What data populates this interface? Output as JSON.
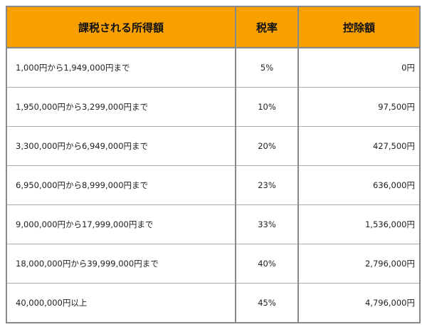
{
  "table": {
    "headers": {
      "income": "課税される所得額",
      "rate": "税率",
      "deduction": "控除額"
    },
    "rows": [
      {
        "income": "1,000円から1,949,000円まで",
        "rate": "5%",
        "deduction": "0円"
      },
      {
        "income": "1,950,000円から3,299,000円まで",
        "rate": "10%",
        "deduction": "97,500円"
      },
      {
        "income": "3,300,000円から6,949,000円まで",
        "rate": "20%",
        "deduction": "427,500円"
      },
      {
        "income": "6,950,000円から8,999,000円まで",
        "rate": "23%",
        "deduction": "636,000円"
      },
      {
        "income": "9,000,000円から17,999,000円まで",
        "rate": "33%",
        "deduction": "1,536,000円"
      },
      {
        "income": "18,000,000円から39,999,000円まで",
        "rate": "40%",
        "deduction": "2,796,000円"
      },
      {
        "income": "40,000,000円以上",
        "rate": "45%",
        "deduction": "4,796,000円"
      }
    ]
  },
  "colors": {
    "header_background": "#f7a000",
    "border": "#888888"
  }
}
